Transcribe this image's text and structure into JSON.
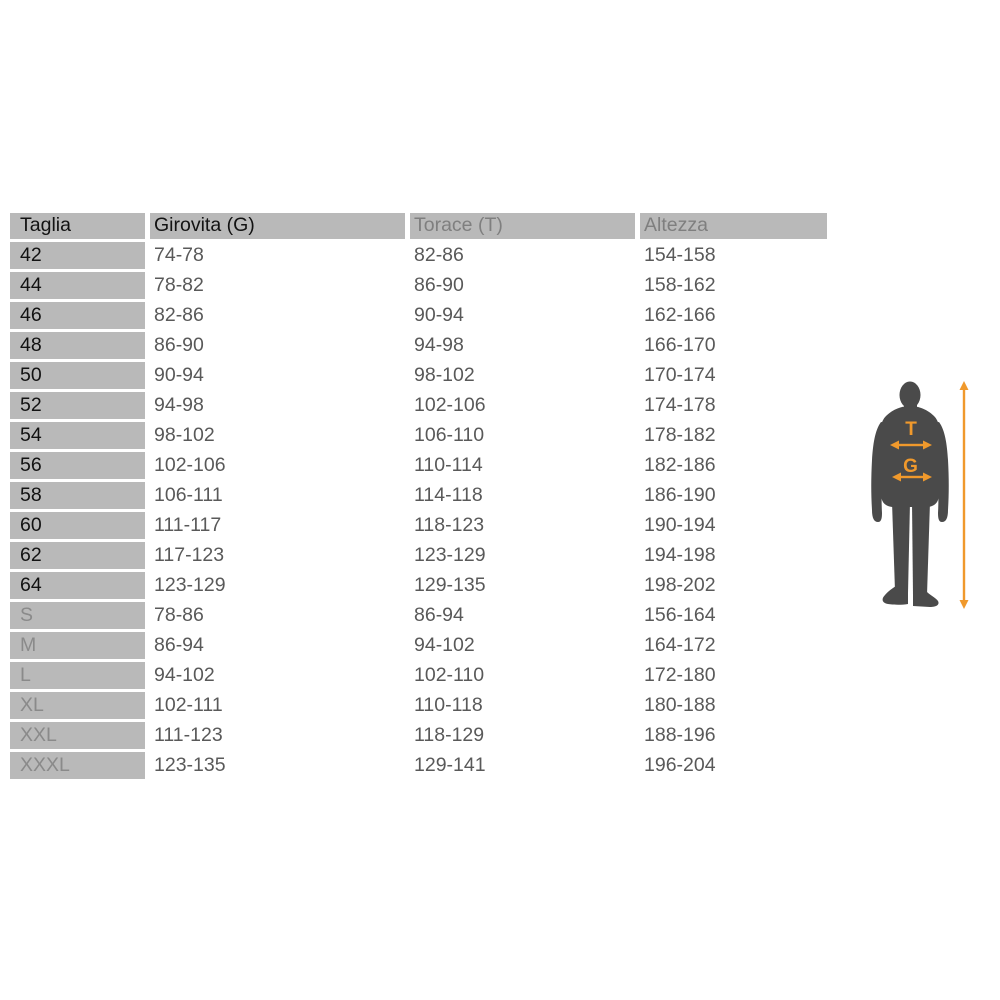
{
  "chart_data": {
    "type": "table",
    "columns": [
      "Taglia",
      "Girovita (G)",
      "Torace (T)",
      "Altezza"
    ],
    "rows": [
      [
        "42",
        "74-78",
        "82-86",
        "154-158"
      ],
      [
        "44",
        "78-82",
        "86-90",
        "158-162"
      ],
      [
        "46",
        "82-86",
        "90-94",
        "162-166"
      ],
      [
        "48",
        "86-90",
        "94-98",
        "166-170"
      ],
      [
        "50",
        "90-94",
        "98-102",
        "170-174"
      ],
      [
        "52",
        "94-98",
        "102-106",
        "174-178"
      ],
      [
        "54",
        "98-102",
        "106-110",
        "178-182"
      ],
      [
        "56",
        "102-106",
        "110-114",
        "182-186"
      ],
      [
        "58",
        "106-111",
        "114-118",
        "186-190"
      ],
      [
        "60",
        "111-117",
        "118-123",
        "190-194"
      ],
      [
        "62",
        "117-123",
        "123-129",
        "194-198"
      ],
      [
        "64",
        "123-129",
        "129-135",
        "198-202"
      ],
      [
        "S",
        "78-86",
        "86-94",
        "156-164"
      ],
      [
        "M",
        "86-94",
        "94-102",
        "164-172"
      ],
      [
        "L",
        "94-102",
        "102-110",
        "172-180"
      ],
      [
        "XL",
        "102-111",
        "110-118",
        "180-188"
      ],
      [
        "XXL",
        "111-123",
        "118-129",
        "188-196"
      ],
      [
        "XXXL",
        "123-135",
        "129-141",
        "196-204"
      ]
    ]
  },
  "figure": {
    "chest_label": "T",
    "waist_label": "G",
    "accent_color": "#F0992C",
    "silhouette_color": "#4A4A4A"
  },
  "colors": {
    "cell_background": "#B9B9B9",
    "dark_text": "#121212",
    "muted_header_text": "#7F7F7F",
    "value_text": "#595959",
    "letter_size_text": "#8A8A8A"
  }
}
